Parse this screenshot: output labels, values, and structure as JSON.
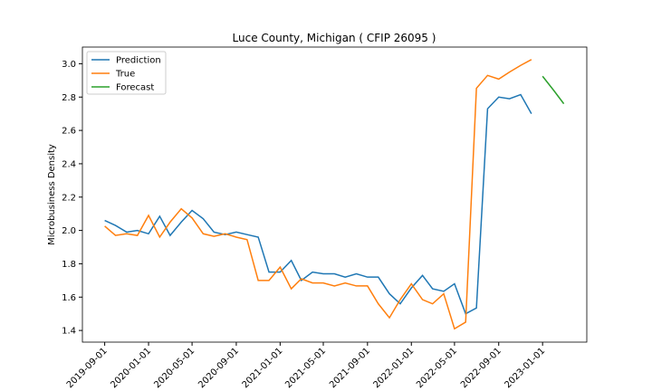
{
  "chart_data": {
    "type": "line",
    "title": "Luce County, Michigan ( CFIP 26095 )",
    "y_label": "Microbusiness Density",
    "series": [
      {
        "name": "Prediction",
        "color": "#1f77b4",
        "x": [
          "2019-09-01",
          "2019-10-01",
          "2019-11-01",
          "2019-12-01",
          "2020-01-01",
          "2020-02-01",
          "2020-03-01",
          "2020-04-01",
          "2020-05-01",
          "2020-06-01",
          "2020-07-01",
          "2020-08-01",
          "2020-09-01",
          "2020-10-01",
          "2020-11-01",
          "2020-12-01",
          "2021-01-01",
          "2021-02-01",
          "2021-03-01",
          "2021-04-01",
          "2021-05-01",
          "2021-06-01",
          "2021-07-01",
          "2021-08-01",
          "2021-09-01",
          "2021-10-01",
          "2021-11-01",
          "2021-12-01",
          "2022-01-01",
          "2022-02-01",
          "2022-03-01",
          "2022-04-01",
          "2022-05-01",
          "2022-06-01",
          "2022-07-01",
          "2022-08-01",
          "2022-09-01",
          "2022-10-01",
          "2022-11-01",
          "2022-12-01"
        ],
        "values": [
          2.06,
          2.03,
          1.99,
          2.0,
          1.98,
          2.085,
          1.97,
          2.05,
          2.12,
          2.07,
          1.99,
          1.975,
          1.99,
          1.975,
          1.96,
          1.75,
          1.75,
          1.82,
          1.7,
          1.75,
          1.74,
          1.74,
          1.72,
          1.74,
          1.72,
          1.72,
          1.62,
          1.56,
          1.655,
          1.73,
          1.65,
          1.635,
          1.68,
          1.5,
          1.535,
          2.73,
          2.8,
          2.79,
          2.815,
          2.7
        ]
      },
      {
        "name": "True",
        "color": "#ff7f0e",
        "x": [
          "2019-09-01",
          "2019-10-01",
          "2019-11-01",
          "2019-12-01",
          "2020-01-01",
          "2020-02-01",
          "2020-03-01",
          "2020-04-01",
          "2020-05-01",
          "2020-06-01",
          "2020-07-01",
          "2020-08-01",
          "2020-09-01",
          "2020-10-01",
          "2020-11-01",
          "2020-12-01",
          "2021-01-01",
          "2021-02-01",
          "2021-03-01",
          "2021-04-01",
          "2021-05-01",
          "2021-06-01",
          "2021-07-01",
          "2021-08-01",
          "2021-09-01",
          "2021-10-01",
          "2021-11-01",
          "2021-12-01",
          "2022-01-01",
          "2022-02-01",
          "2022-03-01",
          "2022-04-01",
          "2022-05-01",
          "2022-06-01",
          "2022-07-01",
          "2022-08-01",
          "2022-09-01",
          "2022-10-01",
          "2022-11-01",
          "2022-12-01"
        ],
        "values": [
          2.026,
          1.97,
          1.98,
          1.97,
          2.09,
          1.96,
          2.05,
          2.13,
          2.075,
          1.98,
          1.965,
          1.98,
          1.96,
          1.945,
          1.7,
          1.7,
          1.78,
          1.65,
          1.71,
          1.685,
          1.685,
          1.667,
          1.685,
          1.667,
          1.667,
          1.56,
          1.476,
          1.585,
          1.68,
          1.585,
          1.56,
          1.62,
          1.41,
          1.45,
          2.853,
          2.93,
          2.908,
          2.95,
          2.99,
          3.025
        ]
      },
      {
        "name": "Forecast",
        "color": "#2ca02c",
        "x": [
          "2023-01-01",
          "2023-02-01",
          "2023-03-01"
        ],
        "values": [
          2.925,
          2.84,
          2.76
        ]
      }
    ],
    "xlim": [
      "2019-07-01",
      "2023-05-04"
    ],
    "ylim": [
      1.33,
      3.1
    ],
    "xticks": [
      "2019-09-01",
      "2020-01-01",
      "2020-05-01",
      "2020-09-01",
      "2021-01-01",
      "2021-05-01",
      "2021-09-01",
      "2022-01-01",
      "2022-05-01",
      "2022-09-01",
      "2023-01-01"
    ],
    "yticks": [
      {
        "value": 1.4,
        "label": "1.4"
      },
      {
        "value": 1.6,
        "label": "1.6"
      },
      {
        "value": 1.8,
        "label": "1.8"
      },
      {
        "value": 2.0,
        "label": "2.0"
      },
      {
        "value": 2.2,
        "label": "2.2"
      },
      {
        "value": 2.4,
        "label": "2.4"
      },
      {
        "value": 2.6,
        "label": "2.6"
      },
      {
        "value": 2.8,
        "label": "2.8"
      },
      {
        "value": 3.0,
        "label": "3.0"
      }
    ],
    "legend": "upper left"
  }
}
